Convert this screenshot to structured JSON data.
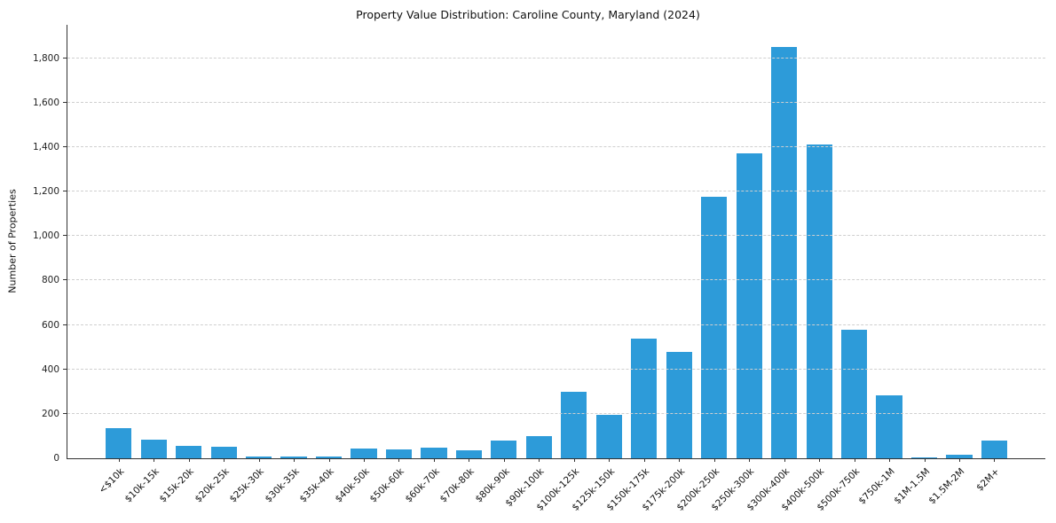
{
  "chart_data": {
    "type": "bar",
    "title": "Property Value Distribution: Caroline County, Maryland (2024)",
    "xlabel": "",
    "ylabel": "Number of Properties",
    "categories": [
      "<$10k",
      "$10k-15k",
      "$15k-20k",
      "$20k-25k",
      "$25k-30k",
      "$30k-35k",
      "$35k-40k",
      "$40k-50k",
      "$50k-60k",
      "$60k-70k",
      "$70k-80k",
      "$80k-90k",
      "$90k-100k",
      "$100k-125k",
      "$125k-150k",
      "$150k-175k",
      "$175k-200k",
      "$200k-250k",
      "$250k-300k",
      "$300k-400k",
      "$400k-500k",
      "$500k-750k",
      "$750k-1M",
      "$1M-1.5M",
      "$1.5M-2M",
      "$2M+"
    ],
    "values": [
      135,
      85,
      55,
      50,
      8,
      10,
      10,
      45,
      40,
      48,
      35,
      80,
      100,
      300,
      195,
      540,
      480,
      1175,
      1370,
      1850,
      1410,
      580,
      285,
      5,
      15,
      80
    ],
    "ylim": [
      0,
      1950
    ],
    "ytick_step": 200,
    "ytick_max": 1800,
    "grid": "horizontal-dashed",
    "legend": "none"
  },
  "colors": {
    "bar": "#2D9BD9",
    "grid": "#cfcfcf",
    "axis": "#333333",
    "text": "#111111"
  }
}
